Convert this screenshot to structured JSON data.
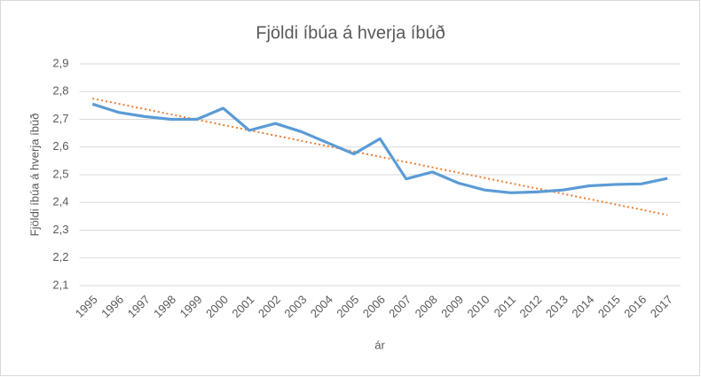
{
  "chart_data": {
    "type": "line",
    "title": "Fjöldi íbúa á hverja íbúð",
    "x_label": "ár",
    "y_label": "Fjöldi íbúa á hverja íbúð",
    "categories": [
      "1995",
      "1996",
      "1997",
      "1998",
      "1999",
      "2000",
      "2001",
      "2002",
      "2003",
      "2004",
      "2005",
      "2006",
      "2007",
      "2008",
      "2009",
      "2010",
      "2011",
      "2012",
      "2013",
      "2014",
      "2015",
      "2016",
      "2017"
    ],
    "values": [
      2.755,
      2.725,
      2.71,
      2.7,
      2.7,
      2.74,
      2.66,
      2.685,
      2.655,
      2.615,
      2.575,
      2.63,
      2.485,
      2.51,
      2.47,
      2.445,
      2.435,
      2.438,
      2.445,
      2.46,
      2.465,
      2.467,
      2.487
    ],
    "color": "#5b9bd5",
    "trendline": {
      "start": 2.775,
      "end": 2.355,
      "color": "#ed7d31",
      "style": "dotted"
    },
    "ylim": [
      2.1,
      2.9
    ],
    "yticks": [
      {
        "value": 2.1,
        "label": "2,1"
      },
      {
        "value": 2.2,
        "label": "2,2"
      },
      {
        "value": 2.3,
        "label": "2,3"
      },
      {
        "value": 2.4,
        "label": "2,4"
      },
      {
        "value": 2.5,
        "label": "2,5"
      },
      {
        "value": 2.6,
        "label": "2,6"
      },
      {
        "value": 2.7,
        "label": "2,7"
      },
      {
        "value": 2.8,
        "label": "2,8"
      },
      {
        "value": 2.9,
        "label": "2,9"
      }
    ],
    "grid": true
  }
}
